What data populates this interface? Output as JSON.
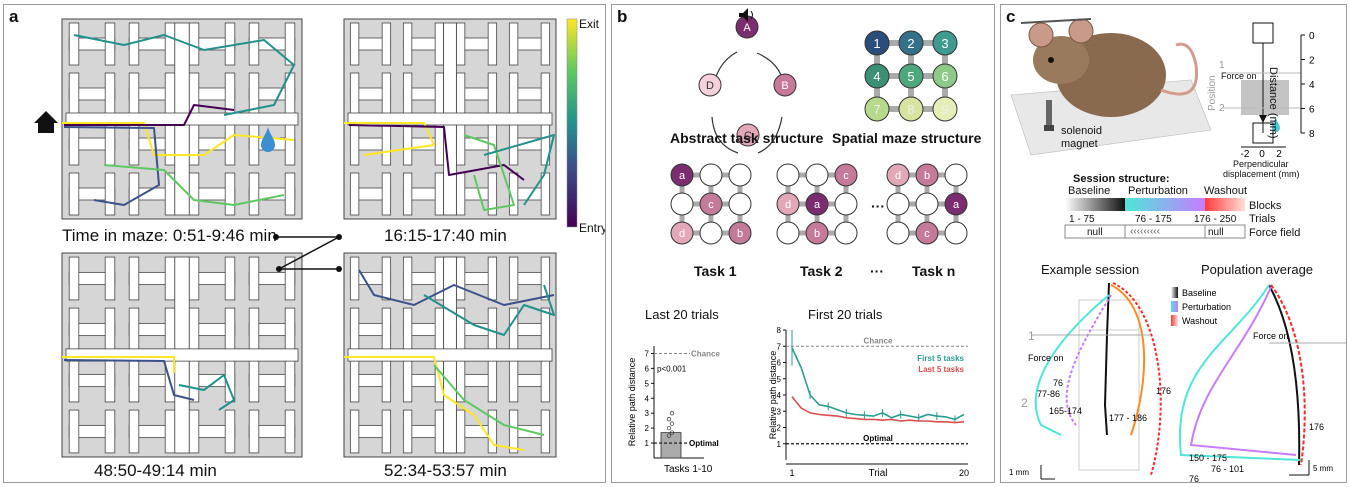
{
  "panels": [
    {
      "label": "a",
      "colorbar": {
        "top": "Exit",
        "bottom": "Entry"
      },
      "mazes": [
        {
          "caption": "Time in maze: 0:51-9:46 min"
        },
        {
          "caption": "16:15-17:40 min"
        },
        {
          "caption": "48:50-49:14 min"
        },
        {
          "caption": "52:34-53:57 min"
        }
      ],
      "colors": {
        "viridis_low": "#440154",
        "viridis_mid": "#21918c",
        "viridis_high": "#fde725"
      }
    },
    {
      "label": "b",
      "abstract_nodes": [
        "A",
        "B",
        "C",
        "D"
      ],
      "abstract_title": "Abstract task structure",
      "spatial_nodes": [
        "1",
        "2",
        "3",
        "4",
        "5",
        "6",
        "7",
        "8",
        "9"
      ],
      "spatial_title": "Spatial maze structure",
      "tasks": [
        {
          "title": "Task 1",
          "nodes": [
            "a",
            "",
            "",
            "",
            "c",
            "",
            "d",
            "",
            "b"
          ]
        },
        {
          "title": "Task 2",
          "nodes": [
            "",
            "",
            "c",
            "d",
            "a",
            "",
            "",
            "b",
            ""
          ]
        },
        {
          "title": "Task n",
          "nodes": [
            "d",
            "b",
            "",
            "",
            "",
            "a",
            "",
            "c",
            ""
          ]
        }
      ],
      "ellipsis": "···",
      "left_chart": {
        "title": "Last 20 trials",
        "ylabel": "Relative path distance",
        "xlabel": "Tasks 1-10",
        "yticks": [
          "1",
          "2",
          "3",
          "4",
          "5",
          "6",
          "7"
        ],
        "chance_label": "Chance",
        "optimal_label": "Optimal",
        "p_label": "p<0.001"
      },
      "right_chart": {
        "title": "First 20 trials",
        "ylabel": "Relative path distance",
        "xlabel": "Trial",
        "xticks": [
          "1",
          "20"
        ],
        "yticks": [
          "1",
          "2",
          "3",
          "4",
          "5",
          "6",
          "7",
          "8"
        ],
        "chance_label": "Chance",
        "optimal_label": "Optimal",
        "legend": [
          "First 5 tasks",
          "Last 5 tasks"
        ]
      }
    },
    {
      "label": "c",
      "solenoid_label": [
        "solenoid",
        "magnet"
      ],
      "force_on": "Force on",
      "position_label": "Position",
      "position_marks": [
        "1",
        "2"
      ],
      "distance_label": "Distance (mm)",
      "distance_ticks": [
        "0",
        "2",
        "4",
        "6",
        "8"
      ],
      "perp_ticks": [
        "-2",
        "0",
        "2"
      ],
      "perp_label": [
        "Perpendicular",
        "displacement (mm)"
      ],
      "session_title": "Session structure:",
      "phases": [
        "Baseline",
        "Perturbation",
        "Washout"
      ],
      "blocks_label": "Blocks",
      "trials": [
        "1 - 75",
        "76 - 175",
        "176 - 250"
      ],
      "trials_label": "Trials",
      "force_field": [
        "null",
        "‹‹‹‹‹‹‹‹‹",
        "null"
      ],
      "force_field_label": "Force field",
      "example_title": "Example session",
      "population_title": "Population average",
      "legend": [
        "Baseline",
        "Perturbation",
        "Washout"
      ],
      "example_marks": [
        "1",
        "2"
      ],
      "example_labels": [
        "76",
        "77-86",
        "165-174",
        "177 - 186",
        "176"
      ],
      "population_labels": [
        "176",
        "150 - 175",
        "76 - 101",
        "76"
      ],
      "scale_labels": [
        "1 mm",
        "1 mm",
        "5 mm",
        ".5 mm"
      ]
    }
  ],
  "chart_data": [
    {
      "type": "bar",
      "title": "Last 20 trials",
      "categories": [
        "Tasks 1-10"
      ],
      "values": [
        1.7
      ],
      "ylabel": "Relative path distance",
      "ylim": [
        0,
        7.5
      ],
      "points": [
        1.5,
        1.7,
        2.0,
        2.3,
        2.6,
        3.0
      ]
    },
    {
      "type": "line",
      "title": "First 20 trials",
      "xlabel": "Trial",
      "ylabel": "Relative path distance",
      "x": [
        1,
        2,
        3,
        4,
        5,
        6,
        7,
        8,
        9,
        10,
        11,
        12,
        13,
        14,
        15,
        16,
        17,
        18,
        19,
        20
      ],
      "ylim": [
        0,
        8
      ],
      "series": [
        {
          "name": "First 5 tasks",
          "color": "#2a9d8f",
          "values": [
            6.9,
            5.7,
            4.0,
            3.4,
            3.3,
            3.1,
            2.9,
            2.8,
            2.75,
            2.7,
            2.9,
            2.6,
            2.8,
            2.7,
            2.6,
            2.8,
            2.7,
            2.65,
            2.5,
            2.8
          ]
        },
        {
          "name": "Last 5 tasks",
          "color": "#d94f4f",
          "values": [
            3.9,
            3.2,
            2.9,
            2.8,
            2.75,
            2.7,
            2.6,
            2.55,
            2.5,
            2.5,
            2.45,
            2.5,
            2.4,
            2.45,
            2.4,
            2.4,
            2.35,
            2.35,
            2.3,
            2.35
          ]
        }
      ],
      "reference_lines": {
        "chance": 7,
        "optimal": 1
      }
    }
  ]
}
